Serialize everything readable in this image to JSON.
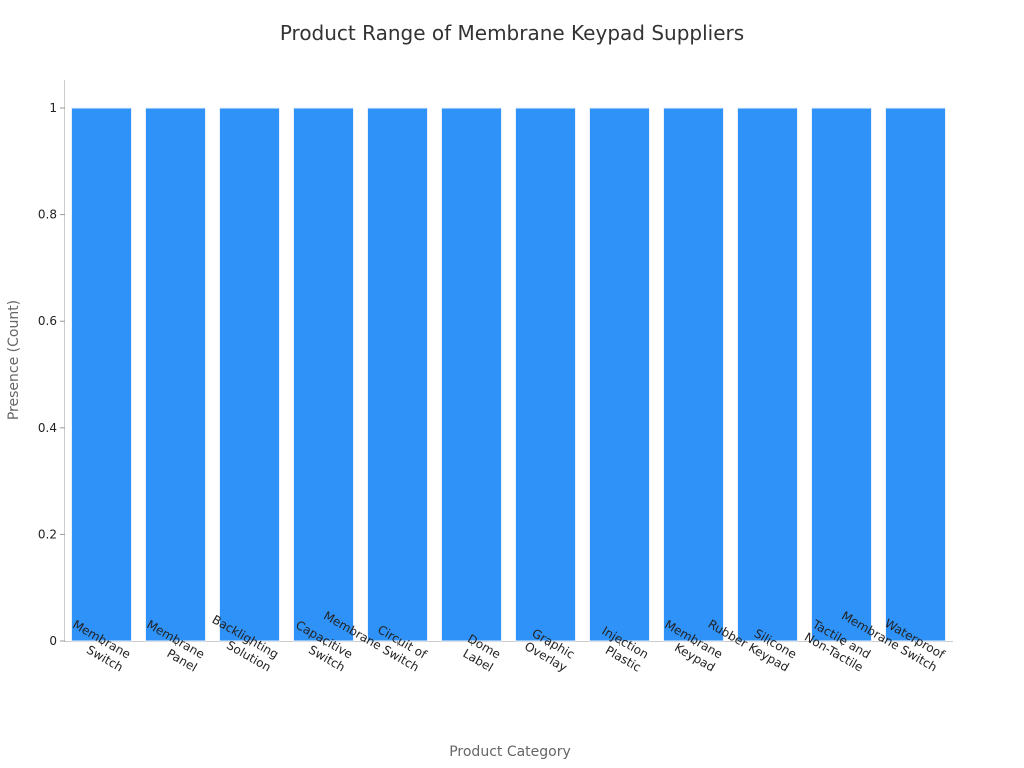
{
  "chart_data": {
    "type": "bar",
    "title": "Product Range of Membrane Keypad Suppliers",
    "xlabel": "Product Category",
    "ylabel": "Presence (Count)",
    "categories": [
      [
        "Membrane",
        "Switch"
      ],
      [
        "Membrane",
        "Panel"
      ],
      [
        "Backlighting",
        "Solution"
      ],
      [
        "Capacitive",
        "Switch"
      ],
      [
        "Circuit of",
        "Membrane Switch"
      ],
      [
        "Dome",
        "Label"
      ],
      [
        "Graphic",
        "Overlay"
      ],
      [
        "Injection",
        "Plastic"
      ],
      [
        "Membrane",
        "Keypad"
      ],
      [
        "Silicone",
        "Rubber Keypad"
      ],
      [
        "Tactile and",
        "Non-Tactile"
      ],
      [
        "Waterproof",
        "Membrane Switch"
      ]
    ],
    "values": [
      1,
      1,
      1,
      1,
      1,
      1,
      1,
      1,
      1,
      1,
      1,
      1
    ],
    "ylim": [
      0,
      1
    ],
    "yticks": [
      "0",
      "0.2",
      "0.4",
      "0.6",
      "0.8",
      "1"
    ],
    "grid": false,
    "colors": {
      "bar": "#2f92f8",
      "bar_edge": "#e8f1fb"
    }
  }
}
